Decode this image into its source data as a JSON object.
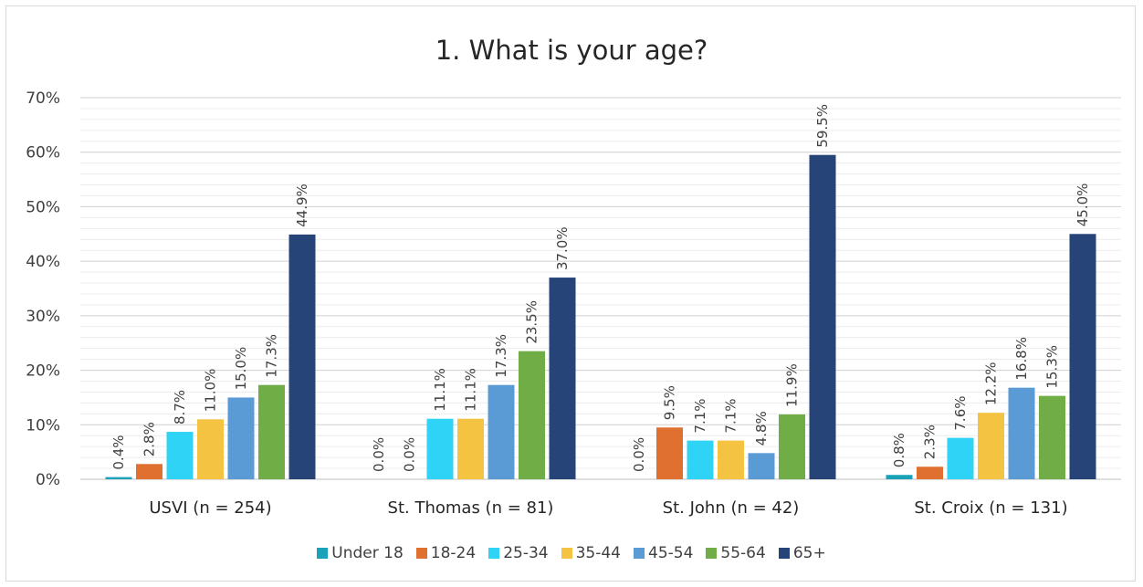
{
  "chart_data": {
    "type": "bar",
    "title": "1. What is your age?",
    "xlabel": "",
    "ylabel": "",
    "ylim": [
      0,
      70
    ],
    "y_ticks": [
      "0%",
      "10%",
      "20%",
      "30%",
      "40%",
      "50%",
      "60%",
      "70%"
    ],
    "categories": [
      "USVI (n = 254)",
      "St. Thomas (n = 81)",
      "St. John (n = 42)",
      "St. Croix (n = 131)"
    ],
    "grid": true,
    "legend_position": "bottom",
    "series": [
      {
        "name": "Under 18",
        "color": "#1aa3b8",
        "values": [
          0.4,
          0.0,
          0.0,
          0.8
        ],
        "labels": [
          "0.4%",
          "0.0%",
          "0.0%",
          "0.8%"
        ]
      },
      {
        "name": "18-24",
        "color": "#e07030",
        "values": [
          2.8,
          0.0,
          9.5,
          2.3
        ],
        "labels": [
          "2.8%",
          "0.0%",
          "9.5%",
          "2.3%"
        ]
      },
      {
        "name": "25-34",
        "color": "#2fd3f5",
        "values": [
          8.7,
          11.1,
          7.1,
          7.6
        ],
        "labels": [
          "8.7%",
          "11.1%",
          "7.1%",
          "7.6%"
        ]
      },
      {
        "name": "35-44",
        "color": "#f5c342",
        "values": [
          11.0,
          11.1,
          7.1,
          12.2
        ],
        "labels": [
          "11.0%",
          "11.1%",
          "7.1%",
          "12.2%"
        ]
      },
      {
        "name": "45-54",
        "color": "#5b9bd5",
        "values": [
          15.0,
          17.3,
          4.8,
          16.8
        ],
        "labels": [
          "15.0%",
          "17.3%",
          "4.8%",
          "16.8%"
        ]
      },
      {
        "name": "55-64",
        "color": "#70ad47",
        "values": [
          17.3,
          23.5,
          11.9,
          15.3
        ],
        "labels": [
          "17.3%",
          "23.5%",
          "11.9%",
          "15.3%"
        ]
      },
      {
        "name": "65+",
        "color": "#264478",
        "values": [
          44.9,
          37.0,
          59.5,
          45.0
        ],
        "labels": [
          "44.9%",
          "37.0%",
          "59.5%",
          "45.0%"
        ]
      }
    ]
  }
}
